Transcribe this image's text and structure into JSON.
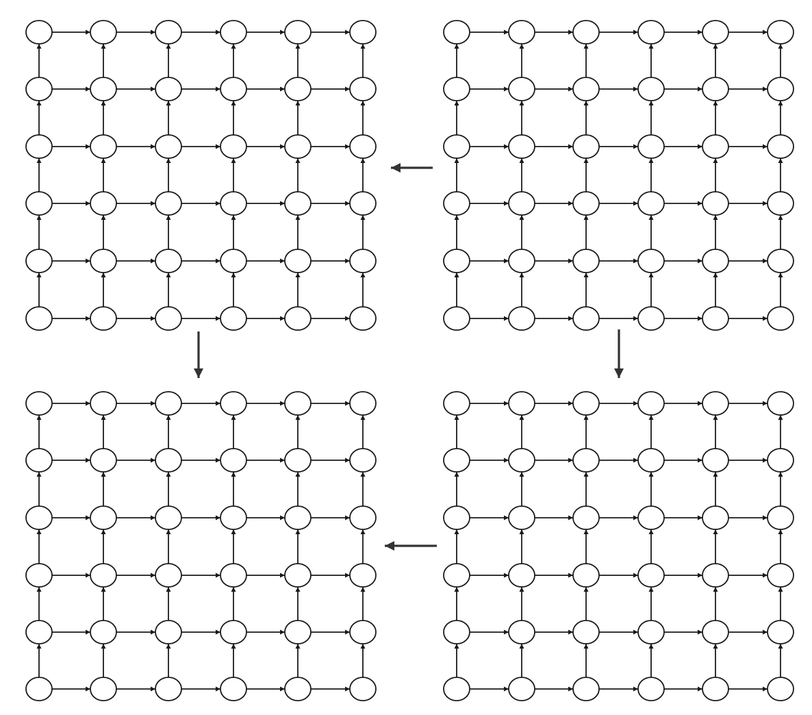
{
  "diagram": {
    "type": "grid-graph-sequence",
    "panels": [
      {
        "id": "top-left",
        "rows": 6,
        "cols": 6,
        "edges": "right-and-up"
      },
      {
        "id": "top-right",
        "rows": 6,
        "cols": 6,
        "edges": "right-and-up"
      },
      {
        "id": "bottom-left",
        "rows": 6,
        "cols": 6,
        "edges": "right-and-up"
      },
      {
        "id": "bottom-right",
        "rows": 6,
        "cols": 6,
        "edges": "right-and-up"
      }
    ],
    "transitions": [
      {
        "from": "top-right",
        "to": "top-left",
        "direction": "left"
      },
      {
        "from": "top-right",
        "to": "bottom-right",
        "direction": "down"
      },
      {
        "from": "top-left",
        "to": "bottom-left",
        "direction": "down"
      },
      {
        "from": "bottom-right",
        "to": "bottom-left",
        "direction": "left"
      }
    ],
    "colors": {
      "node_stroke": "#1a1a1a",
      "node_fill": "#ffffff",
      "edge": "#1a1a1a",
      "transition_arrow": "#333333"
    }
  }
}
